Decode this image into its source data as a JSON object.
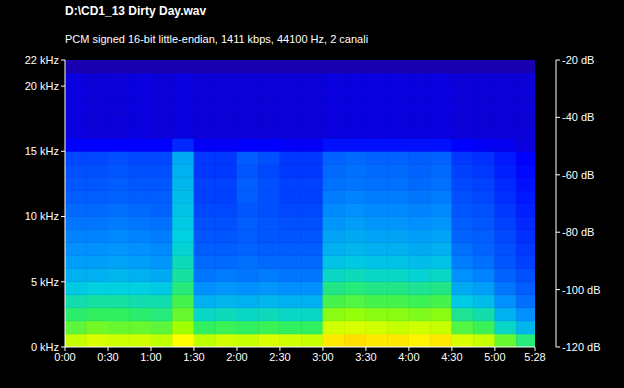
{
  "chart_data": {
    "type": "heatmap",
    "title": "D:\\CD1_13 Dirty Day.wav",
    "subtitle": "PCM signed 16-bit little-endian, 1411 kbps, 44100 Hz, 2 canali",
    "x": [
      0,
      15,
      30,
      45,
      60,
      75,
      90,
      105,
      120,
      135,
      150,
      165,
      180,
      195,
      210,
      225,
      240,
      255,
      270,
      285,
      300,
      315,
      328
    ],
    "y": [
      0,
      1,
      2,
      3,
      4,
      5,
      6,
      7,
      8,
      9,
      10,
      11,
      12,
      13,
      14,
      15,
      16,
      17,
      18,
      19,
      20,
      21,
      22
    ],
    "cells": [
      [
        -46,
        -44,
        -45,
        -45,
        -47,
        -40,
        -47,
        -45,
        -46,
        -44,
        -45,
        -46,
        -38,
        -37,
        -38,
        -38,
        -39,
        -38,
        -44,
        -46,
        -55,
        -62
      ],
      [
        -56,
        -54,
        -55,
        -55,
        -56,
        -50,
        -60,
        -59,
        -60,
        -59,
        -60,
        -60,
        -45,
        -44,
        -45,
        -46,
        -45,
        -46,
        -57,
        -59,
        -68,
        -74
      ],
      [
        -61,
        -60,
        -60,
        -61,
        -62,
        -55,
        -68,
        -67,
        -68,
        -67,
        -68,
        -68,
        -52,
        -51,
        -52,
        -52,
        -53,
        -52,
        -64,
        -66,
        -75,
        -80
      ],
      [
        -66,
        -65,
        -65,
        -66,
        -66,
        -58,
        -75,
        -74,
        -75,
        -74,
        -75,
        -75,
        -58,
        -57,
        -58,
        -58,
        -59,
        -58,
        -71,
        -73,
        -80,
        -85
      ],
      [
        -71,
        -70,
        -70,
        -70,
        -71,
        -62,
        -80,
        -79,
        -80,
        -79,
        -80,
        -80,
        -63,
        -62,
        -63,
        -63,
        -64,
        -63,
        -76,
        -78,
        -84,
        -88
      ],
      [
        -75,
        -75,
        -74,
        -75,
        -76,
        -65,
        -84,
        -83,
        -84,
        -83,
        -84,
        -84,
        -68,
        -67,
        -68,
        -68,
        -69,
        -68,
        -80,
        -82,
        -87,
        -90
      ],
      [
        -78,
        -78,
        -77,
        -78,
        -79,
        -67,
        -86,
        -86,
        -85,
        -86,
        -86,
        -86,
        -72,
        -71,
        -72,
        -72,
        -73,
        -72,
        -83,
        -85,
        -89,
        -92
      ],
      [
        -80,
        -80,
        -79,
        -80,
        -81,
        -69,
        -88,
        -88,
        -87,
        -88,
        -88,
        -88,
        -75,
        -74,
        -75,
        -75,
        -76,
        -75,
        -85,
        -87,
        -90,
        -93
      ],
      [
        -82,
        -82,
        -81,
        -82,
        -83,
        -70,
        -89,
        -89,
        -88,
        -89,
        -89,
        -89,
        -77,
        -76,
        -77,
        -77,
        -78,
        -77,
        -87,
        -88,
        -91,
        -94
      ],
      [
        -84,
        -84,
        -83,
        -84,
        -85,
        -71,
        -90,
        -90,
        -88,
        -89,
        -90,
        -90,
        -79,
        -78,
        -79,
        -79,
        -80,
        -79,
        -88,
        -89,
        -92,
        -95
      ],
      [
        -86,
        -86,
        -85,
        -86,
        -87,
        -72,
        -91,
        -91,
        -89,
        -90,
        -91,
        -91,
        -81,
        -80,
        -81,
        -81,
        -82,
        -81,
        -89,
        -90,
        -93,
        -96
      ],
      [
        -88,
        -88,
        -87,
        -88,
        -88,
        -73,
        -92,
        -92,
        -88,
        -90,
        -92,
        -92,
        -83,
        -82,
        -83,
        -83,
        -84,
        -83,
        -90,
        -91,
        -94,
        -97
      ],
      [
        -89,
        -89,
        -88,
        -89,
        -89,
        -74,
        -92,
        -92,
        -88,
        -90,
        -92,
        -92,
        -85,
        -84,
        -85,
        -85,
        -86,
        -85,
        -91,
        -92,
        -95,
        -98
      ],
      [
        -90,
        -90,
        -89,
        -90,
        -90,
        -75,
        -93,
        -93,
        -89,
        -91,
        -93,
        -93,
        -86,
        -85,
        -86,
        -86,
        -87,
        -86,
        -92,
        -93,
        -96,
        -99
      ],
      [
        -91,
        -91,
        -90,
        -91,
        -91,
        -76,
        -93,
        -93,
        -88,
        -90,
        -93,
        -93,
        -87,
        -86,
        -87,
        -87,
        -88,
        -87,
        -93,
        -94,
        -97,
        -100
      ],
      [
        -100,
        -100,
        -100,
        -100,
        -100,
        -95,
        -101,
        -101,
        -100,
        -100,
        -101,
        -101,
        -98,
        -98,
        -98,
        -98,
        -98,
        -98,
        -100,
        -101,
        -102,
        -104
      ],
      [
        -104,
        -105,
        -105,
        -104,
        -105,
        -104,
        -105,
        -105,
        -105,
        -105,
        -105,
        -105,
        -104,
        -104,
        -104,
        -104,
        -104,
        -104,
        -105,
        -105,
        -105,
        -105
      ],
      [
        -104,
        -105,
        -105,
        -104,
        -105,
        -104,
        -105,
        -105,
        -105,
        -105,
        -105,
        -105,
        -104,
        -104,
        -104,
        -104,
        -104,
        -104,
        -105,
        -105,
        -105,
        -105
      ],
      [
        -104,
        -105,
        -105,
        -104,
        -105,
        -104,
        -105,
        -105,
        -105,
        -105,
        -105,
        -105,
        -104,
        -104,
        -104,
        -104,
        -104,
        -104,
        -105,
        -105,
        -105,
        -105
      ],
      [
        -104,
        -105,
        -105,
        -104,
        -105,
        -104,
        -105,
        -105,
        -105,
        -105,
        -105,
        -105,
        -104,
        -104,
        -104,
        -104,
        -104,
        -104,
        -105,
        -105,
        -105,
        -105
      ],
      [
        -104,
        -105,
        -105,
        -104,
        -105,
        -104,
        -105,
        -105,
        -105,
        -105,
        -105,
        -105,
        -104,
        -104,
        -104,
        -104,
        -104,
        -104,
        -105,
        -105,
        -105,
        -105
      ],
      [
        -110,
        -110,
        -110,
        -110,
        -110,
        -110,
        -110,
        -110,
        -110,
        -110,
        -110,
        -110,
        -110,
        -110,
        -110,
        -110,
        -110,
        -110,
        -110,
        -110,
        -110,
        -110
      ]
    ],
    "xlim": [
      0,
      328
    ],
    "xticks": [
      {
        "value": 0,
        "label": "0:00"
      },
      {
        "value": 30,
        "label": "0:30"
      },
      {
        "value": 60,
        "label": "1:00"
      },
      {
        "value": 90,
        "label": "1:30"
      },
      {
        "value": 120,
        "label": "2:00"
      },
      {
        "value": 150,
        "label": "2:30"
      },
      {
        "value": 180,
        "label": "3:00"
      },
      {
        "value": 210,
        "label": "3:30"
      },
      {
        "value": 240,
        "label": "4:00"
      },
      {
        "value": 270,
        "label": "4:30"
      },
      {
        "value": 300,
        "label": "5:00"
      },
      {
        "value": 328,
        "label": "5:28"
      }
    ],
    "ylim": [
      0,
      22
    ],
    "yticks": [
      {
        "value": 0,
        "label": "0 kHz"
      },
      {
        "value": 5,
        "label": "5 kHz"
      },
      {
        "value": 10,
        "label": "10 kHz"
      },
      {
        "value": 15,
        "label": "15 kHz"
      },
      {
        "value": 20,
        "label": "20 kHz"
      },
      {
        "value": 22,
        "label": "22 kHz"
      }
    ],
    "colorbar": {
      "range": [
        -120,
        -20
      ],
      "ticks": [
        {
          "value": -20,
          "label": "-20 dB"
        },
        {
          "value": -40,
          "label": "-40 dB"
        },
        {
          "value": -60,
          "label": "-60 dB"
        },
        {
          "value": -80,
          "label": "-80 dB"
        },
        {
          "value": -100,
          "label": "-100 dB"
        },
        {
          "value": -120,
          "label": "-120 dB"
        }
      ]
    },
    "grid": false
  }
}
